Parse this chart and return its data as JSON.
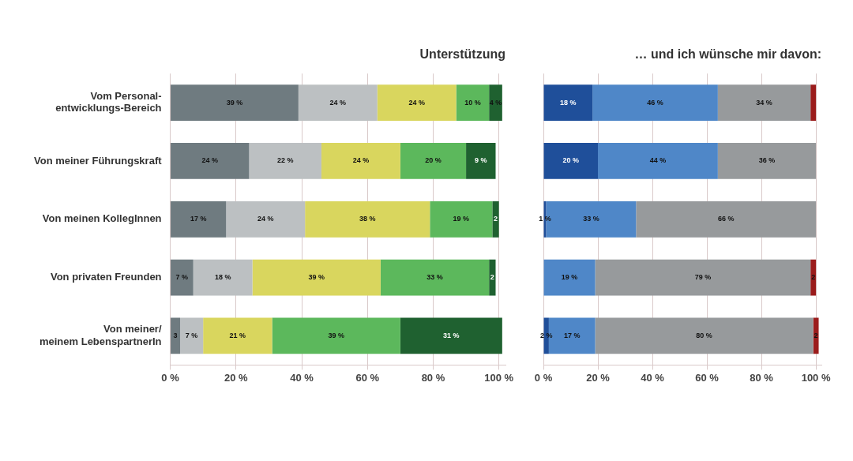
{
  "chart_data": [
    {
      "type": "bar",
      "orientation": "horizontal",
      "stacked": true,
      "title": "Unterstützung",
      "categories": [
        "Vom Personal-\nentwicklungs-Bereich",
        "Von meiner Führungskraft",
        "Von meinen KollegInnen",
        "Von privaten Freunden",
        "Von meiner/\nmeinem LebenspartnerIn"
      ],
      "series": [
        {
          "color": "#6f7b80",
          "values": [
            39,
            24,
            17,
            7,
            3
          ],
          "value_labels": [
            "39 %",
            "24 %",
            "17 %",
            "7 %",
            "3"
          ]
        },
        {
          "color": "#bcc0c2",
          "values": [
            24,
            22,
            24,
            18,
            7
          ],
          "value_labels": [
            "24 %",
            "22 %",
            "24 %",
            "18 %",
            "7 %"
          ]
        },
        {
          "color": "#d9d65e",
          "values": [
            24,
            24,
            38,
            39,
            21
          ],
          "value_labels": [
            "24 %",
            "24 %",
            "38 %",
            "39 %",
            "21 %"
          ]
        },
        {
          "color": "#5cb85c",
          "values": [
            10,
            20,
            19,
            33,
            39
          ],
          "value_labels": [
            "10 %",
            "20 %",
            "19 %",
            "33 %",
            "39 %"
          ]
        },
        {
          "color": "#1f6130",
          "values": [
            4,
            9,
            2,
            2,
            31
          ],
          "value_labels": [
            "4 %",
            "9 %",
            "2",
            "2",
            "31 %"
          ]
        }
      ],
      "xlim": [
        0,
        102
      ],
      "xticks": [
        {
          "value": 0,
          "label": "0 %"
        },
        {
          "value": 20,
          "label": "20 %"
        },
        {
          "value": 40,
          "label": "40 %"
        },
        {
          "value": 60,
          "label": "60 %"
        },
        {
          "value": 80,
          "label": "80 %"
        },
        {
          "value": 100,
          "label": "100 %"
        }
      ],
      "grid": "x"
    },
    {
      "type": "bar",
      "orientation": "horizontal",
      "stacked": true,
      "title": "… und ich wünsche mir davon:",
      "categories": [
        null,
        null,
        null,
        null,
        null
      ],
      "series": [
        {
          "color": "#1f4f9a",
          "values": [
            18,
            20,
            1,
            0,
            2
          ],
          "value_labels": [
            "18 %",
            "20 %",
            "1 %",
            null,
            "2 %"
          ]
        },
        {
          "color": "#4f87c8",
          "values": [
            46,
            44,
            33,
            19,
            17
          ],
          "value_labels": [
            "46 %",
            "44 %",
            "33 %",
            "19 %",
            "17 %"
          ]
        },
        {
          "color": "#979a9c",
          "values": [
            34,
            36,
            66,
            79,
            80
          ],
          "value_labels": [
            "34 %",
            "36 %",
            "66 %",
            "79 %",
            "80 %"
          ]
        },
        {
          "color": "#9b1c1c",
          "values": [
            2,
            0,
            0,
            2,
            2
          ],
          "value_labels": [
            null,
            null,
            null,
            "2",
            "2"
          ]
        }
      ],
      "xlim": [
        0,
        102
      ],
      "xticks": [
        {
          "value": 0,
          "label": "0 %"
        },
        {
          "value": 20,
          "label": "20 %"
        },
        {
          "value": 40,
          "label": "40 %"
        },
        {
          "value": 60,
          "label": "60 %"
        },
        {
          "value": 80,
          "label": "80 %"
        },
        {
          "value": 100,
          "label": "100 %"
        }
      ],
      "grid": "x",
      "tick_labels": "x"
    }
  ]
}
